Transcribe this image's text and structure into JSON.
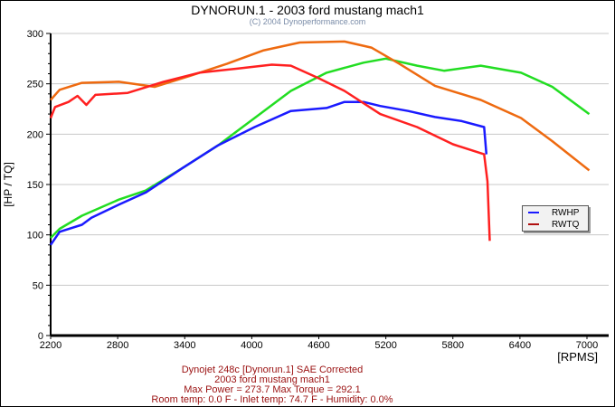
{
  "header": {
    "title": "DYNORUN.1 - 2003 ford mustang mach1",
    "copyright": "(C) 2004 Dynoperformance.com"
  },
  "footer": {
    "line1": "Dynojet 248c [Dynorun.1] SAE Corrected",
    "line2": "2003 ford mustang mach1",
    "line3": "Max Power = 273.7 Max Torque = 292.1",
    "line4": "Room temp: 0.0 F - Inlet temp: 74.7 F - Humidity: 0.0%"
  },
  "chart_data": {
    "type": "line",
    "title": "DYNORUN.1 - 2003 ford mustang mach1",
    "xlabel": "[RPMS]",
    "ylabel": "[HP / TQ]",
    "xlim": [
      2200,
      7000
    ],
    "ylim": [
      0,
      300
    ],
    "xticks": [
      2200,
      2800,
      3400,
      4000,
      4600,
      5200,
      5800,
      6400,
      7000
    ],
    "yticks": [
      0,
      50,
      100,
      150,
      200,
      250,
      300
    ],
    "grid": true,
    "legend_placement": "right",
    "series": [
      {
        "name": "RWHP",
        "color": "#1a1aff",
        "in_legend": true,
        "x": [
          2200,
          2280,
          2480,
          2565,
          2810,
          3050,
          3375,
          3700,
          4025,
          4350,
          4670,
          4830,
          5000,
          5150,
          5400,
          5640,
          5880,
          6080,
          6100
        ],
        "y": [
          90,
          103,
          110,
          117,
          130,
          142,
          166,
          189,
          207,
          223,
          226,
          232,
          232,
          228,
          223,
          217,
          213,
          207,
          180
        ]
      },
      {
        "name": "RWTQ",
        "color": "#ff2020",
        "in_legend": true,
        "x": [
          2200,
          2240,
          2360,
          2440,
          2520,
          2600,
          2890,
          3210,
          3530,
          3860,
          4180,
          4350,
          4590,
          4830,
          5150,
          5480,
          5800,
          6080,
          6110,
          6130
        ],
        "y": [
          216,
          227,
          232,
          238,
          229,
          239,
          241,
          252,
          261,
          265,
          269,
          268,
          256,
          243,
          220,
          207,
          190,
          180,
          153,
          94
        ]
      },
      {
        "name": "",
        "color": "#22dd22",
        "in_legend": false,
        "x": [
          2200,
          2280,
          2480,
          2810,
          3050,
          3375,
          3700,
          4025,
          4350,
          4670,
          5000,
          5200,
          5480,
          5720,
          6050,
          6410,
          6690,
          7020
        ],
        "y": [
          97,
          106,
          119,
          135,
          144,
          166,
          189,
          216,
          243,
          261,
          271,
          275,
          268,
          263,
          268,
          261,
          247,
          220
        ]
      },
      {
        "name": "",
        "color": "#ee6a10",
        "in_legend": false,
        "x": [
          2200,
          2280,
          2480,
          2810,
          3130,
          3450,
          3780,
          4100,
          4430,
          4830,
          5070,
          5320,
          5640,
          6050,
          6410,
          6690,
          7020
        ],
        "y": [
          234,
          244,
          251,
          252,
          247,
          258,
          270,
          283,
          291,
          292,
          286,
          270,
          248,
          234,
          216,
          193,
          164
        ]
      }
    ]
  }
}
